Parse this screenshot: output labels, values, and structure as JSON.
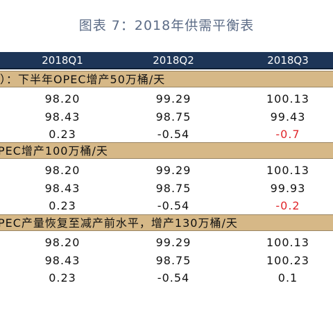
{
  "title": "图表 7：2018年供需平衡表",
  "table": {
    "columns": [
      "2018Q1",
      "2018Q2",
      "2018Q3"
    ],
    "sections": [
      {
        "label": "）：下半年OPEC增产50万桶/天",
        "rows": [
          [
            {
              "text": "98.20"
            },
            {
              "text": "99.29"
            },
            {
              "text": "100.13"
            }
          ],
          [
            {
              "text": "98.43"
            },
            {
              "text": "98.75"
            },
            {
              "text": "99.43"
            }
          ],
          [
            {
              "text": "0.23"
            },
            {
              "text": "-0.54"
            },
            {
              "text": "-0.7",
              "color": "#e0262b"
            }
          ]
        ]
      },
      {
        "label": "PEC增产100万桶/天",
        "rows": [
          [
            {
              "text": "98.20"
            },
            {
              "text": "99.29"
            },
            {
              "text": "100.13"
            }
          ],
          [
            {
              "text": "98.43"
            },
            {
              "text": "98.75"
            },
            {
              "text": "99.93"
            }
          ],
          [
            {
              "text": "0.23"
            },
            {
              "text": "-0.54"
            },
            {
              "text": "-0.2",
              "color": "#e0262b"
            }
          ]
        ]
      },
      {
        "label": "PEC产量恢复至减产前水平，增产130万桶/天",
        "rows": [
          [
            {
              "text": "98.20"
            },
            {
              "text": "99.29"
            },
            {
              "text": "100.13"
            }
          ],
          [
            {
              "text": "98.43"
            },
            {
              "text": "98.75"
            },
            {
              "text": "100.23"
            }
          ],
          [
            {
              "text": "0.23"
            },
            {
              "text": "-0.54"
            },
            {
              "text": "0.1"
            }
          ]
        ]
      }
    ]
  }
}
